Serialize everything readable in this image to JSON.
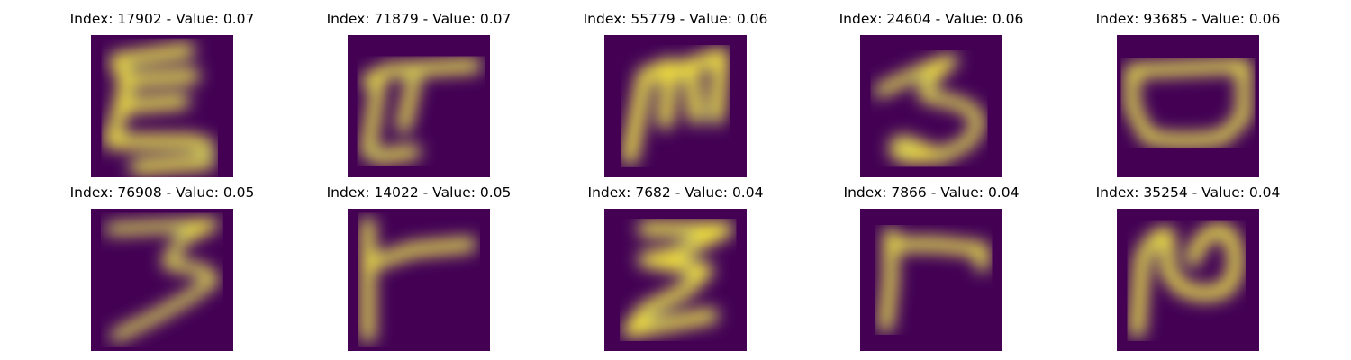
{
  "colors": {
    "background": "#440154",
    "stroke_mid": "#21918c",
    "stroke_edge": "#3b528b",
    "stroke_high": "#fde725"
  },
  "panels": [
    {
      "title": "Index: 17902 - Value: 0.07",
      "glyph": "handwritten E-like character"
    },
    {
      "title": "Index: 71879 - Value: 0.07",
      "glyph": "handwritten T-like character"
    },
    {
      "title": "Index: 55779 - Value: 0.06",
      "glyph": "handwritten M-like character"
    },
    {
      "title": "Index: 24604 - Value: 0.06",
      "glyph": "handwritten 3-like character"
    },
    {
      "title": "Index: 93685 - Value: 0.06",
      "glyph": "handwritten U-like character"
    },
    {
      "title": "Index: 76908 - Value: 0.05",
      "glyph": "handwritten 3-like character"
    },
    {
      "title": "Index: 14022 - Value: 0.05",
      "glyph": "handwritten T-like character"
    },
    {
      "title": "Index: 7682 - Value: 0.04",
      "glyph": "handwritten 3-like character"
    },
    {
      "title": "Index: 7866 - Value: 0.04",
      "glyph": "handwritten r-like character"
    },
    {
      "title": "Index: 35254 - Value: 0.04",
      "glyph": "handwritten N-like character"
    }
  ]
}
